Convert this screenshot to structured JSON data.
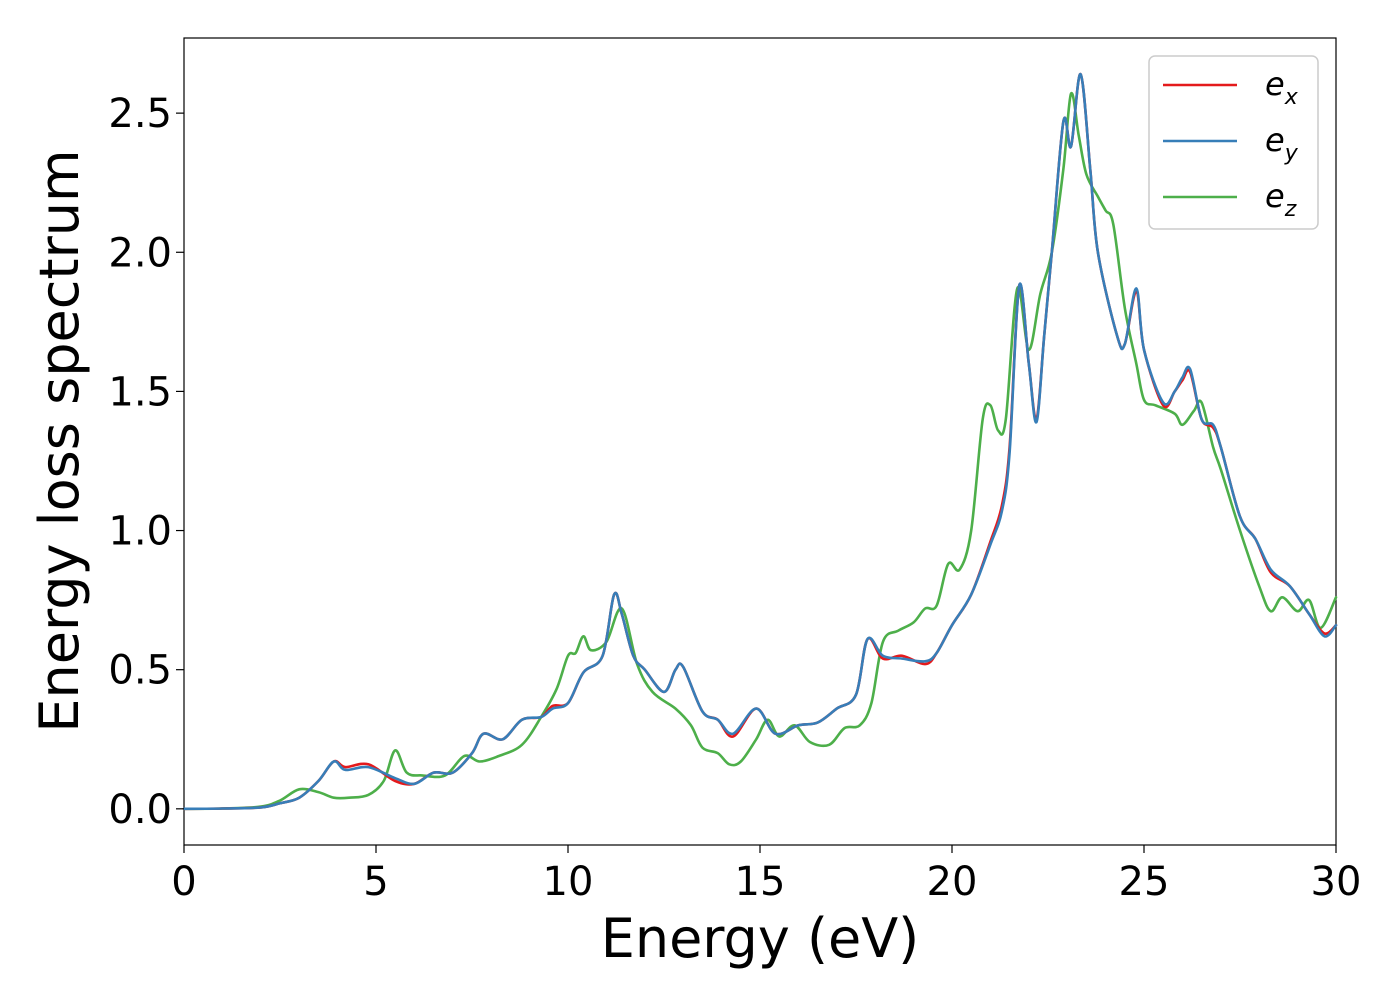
{
  "chart_data": {
    "type": "line",
    "xlabel": "Energy (eV)",
    "ylabel": "Energy loss spectrum",
    "xlim": [
      0,
      30
    ],
    "ylim": [
      -0.13,
      2.77
    ],
    "xticks": [
      0,
      5,
      10,
      15,
      20,
      25,
      30
    ],
    "xtick_labels": [
      "0",
      "5",
      "10",
      "15",
      "20",
      "25",
      "30"
    ],
    "yticks": [
      0.0,
      0.5,
      1.0,
      1.5,
      2.0,
      2.5
    ],
    "ytick_labels": [
      "0.0",
      "0.5",
      "1.0",
      "1.5",
      "2.0",
      "2.5"
    ],
    "grid": false,
    "legend_position": "top-right",
    "series": [
      {
        "name": "e_x",
        "label_base": "e",
        "label_sub": "x",
        "color": "#e41a1c",
        "x": [
          0,
          1,
          2,
          2.5,
          3,
          3.5,
          3.9,
          4.2,
          4.8,
          5.5,
          6,
          6.5,
          7,
          7.5,
          7.8,
          8.3,
          8.8,
          9.3,
          9.6,
          10,
          10.4,
          10.9,
          11.2,
          11.4,
          11.7,
          12,
          12.5,
          12.8,
          13,
          13.5,
          13.9,
          14.3,
          14.9,
          15.4,
          16,
          16.5,
          17,
          17.5,
          17.8,
          18.2,
          18.7,
          19.3,
          19.6,
          20,
          20.5,
          21,
          21.3,
          21.5,
          21.75,
          22,
          22.2,
          22.4,
          22.6,
          22.9,
          23.1,
          23.35,
          23.6,
          23.8,
          24.3,
          24.5,
          24.8,
          25,
          25.5,
          25.8,
          26,
          26.2,
          26.5,
          26.8,
          27,
          27.5,
          27.9,
          28.3,
          28.8,
          29.3,
          29.7,
          30
        ],
        "y": [
          0,
          0.001,
          0.005,
          0.02,
          0.04,
          0.1,
          0.17,
          0.15,
          0.16,
          0.1,
          0.09,
          0.13,
          0.13,
          0.2,
          0.27,
          0.25,
          0.32,
          0.33,
          0.37,
          0.38,
          0.49,
          0.55,
          0.77,
          0.7,
          0.55,
          0.5,
          0.42,
          0.5,
          0.51,
          0.35,
          0.32,
          0.26,
          0.36,
          0.27,
          0.3,
          0.31,
          0.36,
          0.41,
          0.61,
          0.54,
          0.55,
          0.52,
          0.56,
          0.66,
          0.77,
          0.96,
          1.09,
          1.3,
          1.88,
          1.6,
          1.4,
          1.7,
          2.0,
          2.47,
          2.38,
          2.64,
          2.3,
          2.0,
          1.7,
          1.67,
          1.86,
          1.65,
          1.45,
          1.5,
          1.54,
          1.57,
          1.4,
          1.37,
          1.3,
          1.05,
          0.97,
          0.85,
          0.8,
          0.7,
          0.63,
          0.66
        ]
      },
      {
        "name": "e_y",
        "label_base": "e",
        "label_sub": "y",
        "color": "#377eb8",
        "x": [
          0,
          1,
          2,
          2.5,
          3,
          3.5,
          3.9,
          4.2,
          4.8,
          5.5,
          6,
          6.5,
          7,
          7.5,
          7.8,
          8.3,
          8.8,
          9.3,
          9.6,
          10,
          10.4,
          10.9,
          11.2,
          11.4,
          11.7,
          12,
          12.5,
          12.8,
          13,
          13.5,
          13.9,
          14.3,
          14.9,
          15.4,
          16,
          16.5,
          17,
          17.5,
          17.8,
          18.2,
          18.7,
          19.3,
          19.6,
          20,
          20.5,
          21,
          21.3,
          21.5,
          21.75,
          22,
          22.2,
          22.4,
          22.6,
          22.9,
          23.1,
          23.35,
          23.6,
          23.8,
          24.3,
          24.5,
          24.8,
          25,
          25.5,
          25.8,
          26,
          26.2,
          26.5,
          26.8,
          27,
          27.5,
          27.9,
          28.3,
          28.8,
          29.3,
          29.7,
          30
        ],
        "y": [
          0,
          0.001,
          0.005,
          0.02,
          0.04,
          0.1,
          0.17,
          0.14,
          0.15,
          0.11,
          0.09,
          0.13,
          0.13,
          0.2,
          0.27,
          0.25,
          0.32,
          0.33,
          0.36,
          0.38,
          0.49,
          0.55,
          0.77,
          0.7,
          0.55,
          0.5,
          0.42,
          0.5,
          0.51,
          0.35,
          0.32,
          0.27,
          0.36,
          0.27,
          0.3,
          0.31,
          0.36,
          0.41,
          0.61,
          0.55,
          0.54,
          0.53,
          0.56,
          0.66,
          0.77,
          0.95,
          1.07,
          1.28,
          1.88,
          1.6,
          1.39,
          1.7,
          2.0,
          2.47,
          2.38,
          2.64,
          2.3,
          2.0,
          1.7,
          1.67,
          1.87,
          1.65,
          1.46,
          1.5,
          1.55,
          1.58,
          1.4,
          1.38,
          1.3,
          1.05,
          0.97,
          0.86,
          0.8,
          0.7,
          0.62,
          0.66
        ]
      },
      {
        "name": "e_z",
        "label_base": "e",
        "label_sub": "z",
        "color": "#4daf4a",
        "x": [
          0,
          1,
          2,
          2.5,
          3,
          3.5,
          3.9,
          4.3,
          4.8,
          5.2,
          5.5,
          5.8,
          6.2,
          6.8,
          7.3,
          7.7,
          8.2,
          8.8,
          9.3,
          9.7,
          10,
          10.2,
          10.4,
          10.6,
          11,
          11.4,
          11.8,
          12.2,
          12.8,
          13.2,
          13.5,
          13.9,
          14.2,
          14.5,
          14.9,
          15.2,
          15.5,
          15.9,
          16.3,
          16.8,
          17.2,
          17.6,
          17.9,
          18.2,
          18.6,
          19,
          19.3,
          19.6,
          19.9,
          20.2,
          20.5,
          20.8,
          21,
          21.2,
          21.4,
          21.7,
          22,
          22.3,
          22.6,
          22.9,
          23.1,
          23.3,
          23.5,
          23.8,
          24,
          24.2,
          24.5,
          24.8,
          25,
          25.3,
          25.8,
          26,
          26.3,
          26.5,
          26.8,
          27,
          27.5,
          28,
          28.3,
          28.6,
          29,
          29.3,
          29.6,
          30
        ],
        "y": [
          0,
          0.001,
          0.008,
          0.03,
          0.07,
          0.06,
          0.04,
          0.04,
          0.05,
          0.1,
          0.21,
          0.13,
          0.12,
          0.12,
          0.19,
          0.17,
          0.19,
          0.23,
          0.33,
          0.43,
          0.55,
          0.56,
          0.62,
          0.57,
          0.6,
          0.72,
          0.52,
          0.42,
          0.36,
          0.3,
          0.22,
          0.2,
          0.16,
          0.17,
          0.25,
          0.32,
          0.26,
          0.3,
          0.24,
          0.23,
          0.29,
          0.3,
          0.38,
          0.6,
          0.64,
          0.67,
          0.72,
          0.73,
          0.88,
          0.86,
          1.0,
          1.4,
          1.45,
          1.36,
          1.4,
          1.87,
          1.65,
          1.85,
          2.0,
          2.3,
          2.57,
          2.42,
          2.28,
          2.2,
          2.15,
          2.1,
          1.8,
          1.6,
          1.47,
          1.45,
          1.42,
          1.38,
          1.43,
          1.46,
          1.3,
          1.22,
          1.0,
          0.8,
          0.71,
          0.76,
          0.71,
          0.75,
          0.65,
          0.76
        ]
      }
    ]
  }
}
